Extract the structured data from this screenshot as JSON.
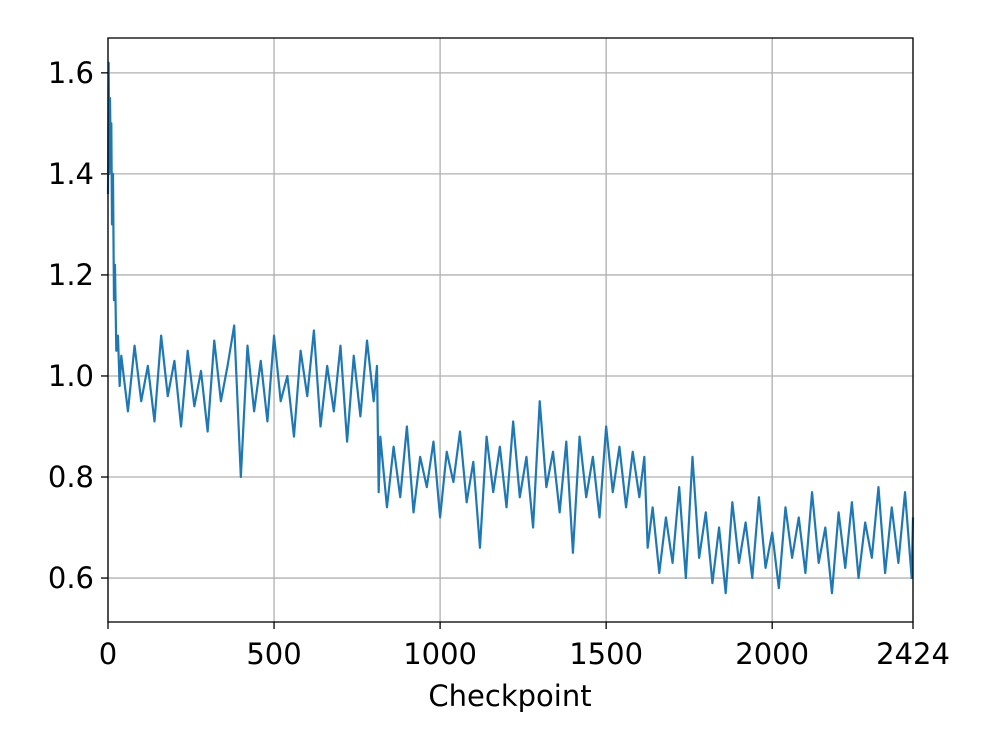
{
  "chart_data": {
    "type": "line",
    "xlabel": "Checkpoint",
    "xlim": [
      0,
      2424
    ],
    "ylim": [
      0.513,
      1.669
    ],
    "xticks": [
      0,
      500,
      1000,
      1500,
      2000,
      2424
    ],
    "yticks": [
      0.6,
      0.8,
      {
        "value": 1,
        "label": "1.0"
      },
      1.2,
      1.4,
      1.6
    ],
    "grid": true,
    "series": [
      {
        "color": "#1f77b4",
        "x": [
          0,
          2,
          4,
          6,
          8,
          10,
          12,
          15,
          18,
          21,
          25,
          30,
          35,
          40,
          60,
          80,
          100,
          120,
          140,
          160,
          180,
          200,
          220,
          240,
          260,
          280,
          300,
          320,
          340,
          360,
          380,
          400,
          420,
          440,
          460,
          480,
          500,
          520,
          540,
          560,
          580,
          600,
          620,
          640,
          660,
          680,
          700,
          720,
          740,
          760,
          780,
          800,
          810,
          815,
          820,
          840,
          860,
          880,
          900,
          920,
          940,
          960,
          980,
          1000,
          1020,
          1040,
          1060,
          1080,
          1100,
          1120,
          1140,
          1160,
          1180,
          1200,
          1220,
          1240,
          1260,
          1280,
          1300,
          1320,
          1340,
          1360,
          1380,
          1400,
          1420,
          1440,
          1460,
          1480,
          1500,
          1520,
          1540,
          1560,
          1580,
          1600,
          1615,
          1625,
          1640,
          1660,
          1680,
          1700,
          1720,
          1740,
          1760,
          1780,
          1800,
          1820,
          1840,
          1860,
          1880,
          1900,
          1920,
          1940,
          1960,
          1980,
          2000,
          2020,
          2040,
          2060,
          2080,
          2100,
          2120,
          2140,
          2160,
          2180,
          2200,
          2220,
          2240,
          2260,
          2280,
          2300,
          2320,
          2340,
          2360,
          2380,
          2400,
          2420,
          2424
        ],
        "values": [
          1.36,
          1.62,
          1.4,
          1.55,
          1.45,
          1.5,
          1.3,
          1.4,
          1.15,
          1.22,
          1.05,
          1.08,
          0.98,
          1.04,
          0.93,
          1.06,
          0.95,
          1.02,
          0.91,
          1.08,
          0.96,
          1.03,
          0.9,
          1.05,
          0.94,
          1.01,
          0.89,
          1.07,
          0.95,
          1.02,
          1.1,
          0.8,
          1.06,
          0.93,
          1.03,
          0.91,
          1.08,
          0.95,
          1.0,
          0.88,
          1.05,
          0.96,
          1.09,
          0.9,
          1.02,
          0.93,
          1.06,
          0.87,
          1.04,
          0.92,
          1.07,
          0.95,
          1.02,
          0.77,
          0.88,
          0.74,
          0.86,
          0.76,
          0.9,
          0.73,
          0.84,
          0.78,
          0.87,
          0.72,
          0.85,
          0.79,
          0.89,
          0.75,
          0.83,
          0.66,
          0.88,
          0.77,
          0.86,
          0.74,
          0.91,
          0.76,
          0.84,
          0.7,
          0.95,
          0.78,
          0.85,
          0.73,
          0.87,
          0.65,
          0.88,
          0.76,
          0.84,
          0.72,
          0.9,
          0.77,
          0.86,
          0.74,
          0.85,
          0.76,
          0.84,
          0.66,
          0.74,
          0.61,
          0.72,
          0.63,
          0.78,
          0.6,
          0.84,
          0.64,
          0.73,
          0.59,
          0.7,
          0.57,
          0.75,
          0.63,
          0.71,
          0.6,
          0.76,
          0.62,
          0.69,
          0.58,
          0.74,
          0.64,
          0.72,
          0.61,
          0.77,
          0.63,
          0.7,
          0.57,
          0.73,
          0.62,
          0.75,
          0.6,
          0.71,
          0.64,
          0.78,
          0.61,
          0.74,
          0.63,
          0.77,
          0.6,
          0.72
        ]
      }
    ]
  }
}
